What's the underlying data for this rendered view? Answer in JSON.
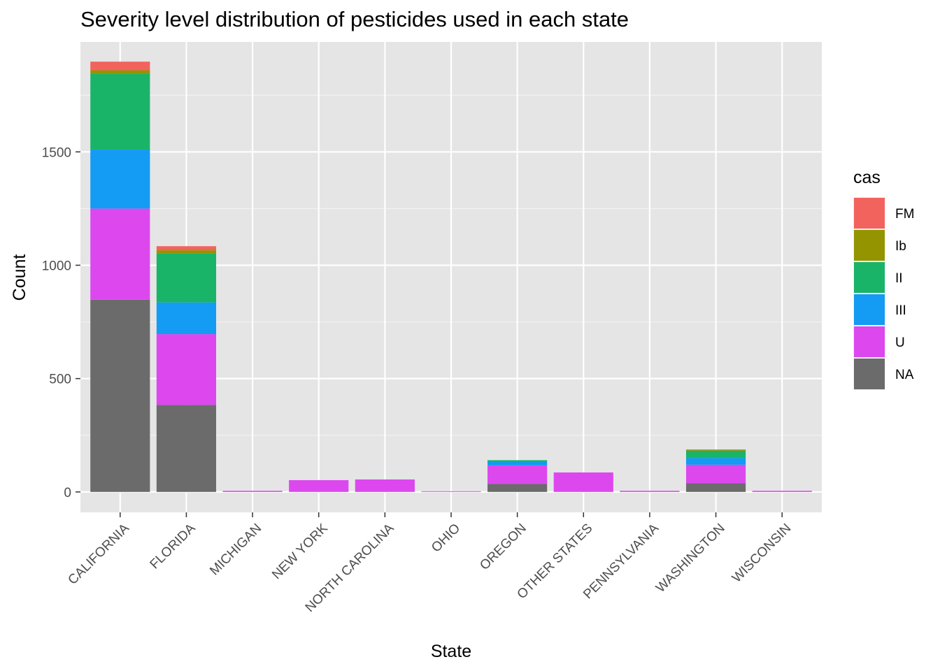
{
  "chart_data": {
    "type": "bar",
    "stacked": true,
    "title": "Severity level distribution of pesticides used in each state",
    "xlabel": "State",
    "ylabel": "Count",
    "ylim": [
      -90,
      1985
    ],
    "yticks": [
      0,
      500,
      1000,
      1500
    ],
    "grid": true,
    "legend_title": "cas",
    "legend_position": "right",
    "categories": [
      "CALIFORNIA",
      "FLORIDA",
      "MICHIGAN",
      "NEW YORK",
      "NORTH CAROLINA",
      "OHIO",
      "OREGON",
      "OTHER STATES",
      "PENNSYLVANIA",
      "WASHINGTON",
      "WISCONSIN"
    ],
    "series": [
      {
        "name": "NA",
        "color": "#6b6b6b",
        "values": [
          848,
          384,
          0,
          0,
          0,
          0,
          35,
          0,
          0,
          38,
          0
        ]
      },
      {
        "name": "U",
        "color": "#dc48ee",
        "values": [
          402,
          312,
          5,
          52,
          55,
          3,
          82,
          86,
          5,
          82,
          5
        ]
      },
      {
        "name": "III",
        "color": "#149bf3",
        "values": [
          260,
          140,
          0,
          0,
          0,
          0,
          15,
          0,
          0,
          30,
          0
        ]
      },
      {
        "name": "II",
        "color": "#19b468",
        "values": [
          335,
          215,
          0,
          0,
          0,
          0,
          8,
          0,
          0,
          32,
          0
        ]
      },
      {
        "name": "Ib",
        "color": "#939400",
        "values": [
          15,
          15,
          0,
          0,
          0,
          0,
          0,
          0,
          0,
          5,
          0
        ]
      },
      {
        "name": "FM",
        "color": "#f2635e",
        "values": [
          38,
          18,
          0,
          0,
          0,
          0,
          0,
          0,
          0,
          0,
          0
        ]
      }
    ],
    "legend_order": [
      "FM",
      "Ib",
      "II",
      "III",
      "U",
      "NA"
    ]
  }
}
